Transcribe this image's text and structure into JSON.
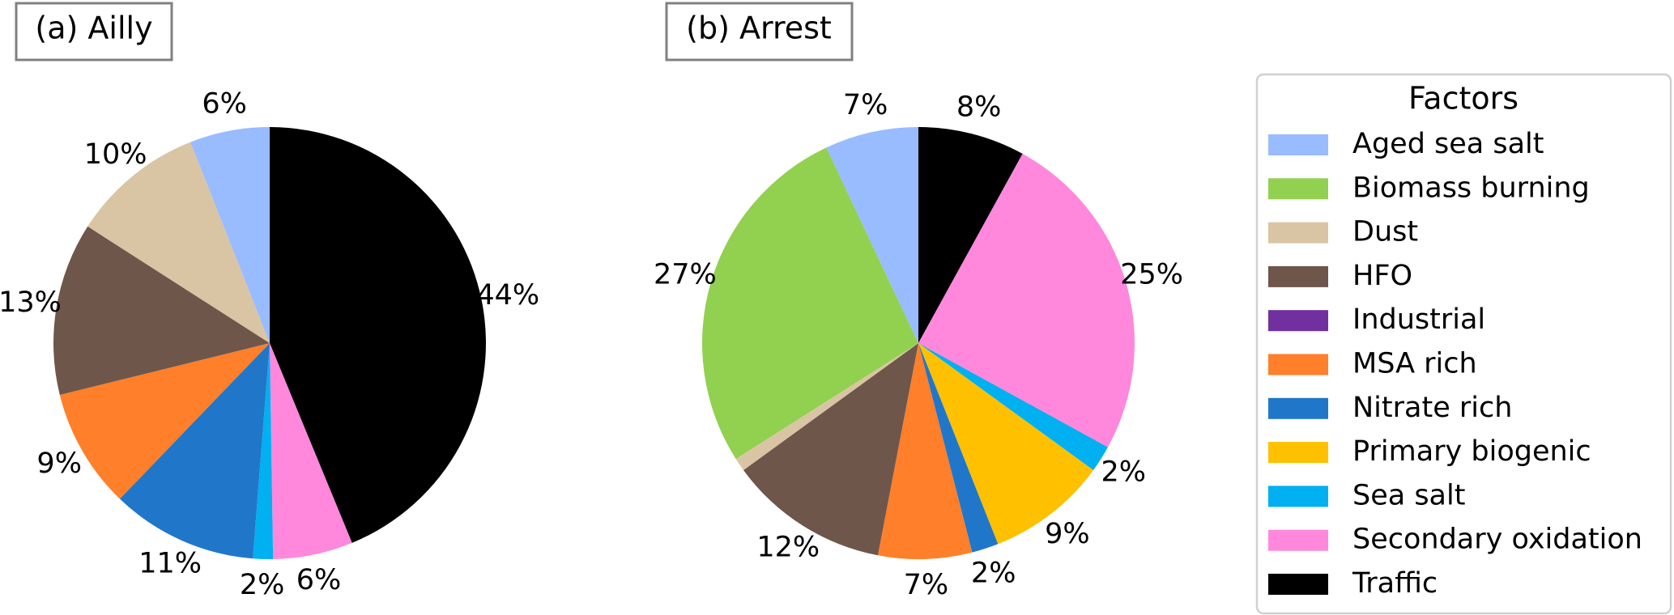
{
  "colors": {
    "Aged sea salt": "#99bbff",
    "Biomass burning": "#92d050",
    "Dust": "#d9c5a3",
    "HFO": "#6f564a",
    "Industrial": "#7030a0",
    "MSA rich": "#ff7f2a",
    "Nitrate rich": "#2077c9",
    "Primary biogenic": "#ffc000",
    "Sea salt": "#00b0f0",
    "Secondary oxidation": "#ff88dd",
    "Traffic": "#000000"
  },
  "legend": {
    "title": "Factors",
    "items": [
      "Aged sea salt",
      "Biomass burning",
      "Dust",
      "HFO",
      "Industrial",
      "MSA rich",
      "Nitrate rich",
      "Primary biogenic",
      "Sea salt",
      "Secondary oxidation",
      "Traffic"
    ]
  },
  "chart_data": [
    {
      "type": "pie",
      "title": "(a) Ailly",
      "slices": [
        {
          "label": "Traffic",
          "value": 44,
          "text": "44%"
        },
        {
          "label": "Secondary oxidation",
          "value": 6,
          "text": "6%"
        },
        {
          "label": "Sea salt",
          "value": 1.5,
          "text": "2%"
        },
        {
          "label": "Nitrate rich",
          "value": 11,
          "text": "11%"
        },
        {
          "label": "MSA rich",
          "value": 9,
          "text": "9%"
        },
        {
          "label": "HFO",
          "value": 13,
          "text": "13%"
        },
        {
          "label": "Dust",
          "value": 10,
          "text": "10%"
        },
        {
          "label": "Aged sea salt",
          "value": 6,
          "text": "6%"
        }
      ]
    },
    {
      "type": "pie",
      "title": "(b) Arrest",
      "slices": [
        {
          "label": "Traffic",
          "value": 8,
          "text": "8%"
        },
        {
          "label": "Secondary oxidation",
          "value": 25,
          "text": "25%"
        },
        {
          "label": "Sea salt",
          "value": 2,
          "text": "2%"
        },
        {
          "label": "Primary biogenic",
          "value": 9,
          "text": "9%"
        },
        {
          "label": "Nitrate rich",
          "value": 2,
          "text": "2%"
        },
        {
          "label": "MSA rich",
          "value": 7,
          "text": "7%"
        },
        {
          "label": "HFO",
          "value": 12,
          "text": "12%"
        },
        {
          "label": "Dust",
          "value": 1,
          "text": ""
        },
        {
          "label": "Biomass burning",
          "value": 27,
          "text": "27%"
        },
        {
          "label": "Aged sea salt",
          "value": 7,
          "text": "7%"
        }
      ]
    }
  ]
}
